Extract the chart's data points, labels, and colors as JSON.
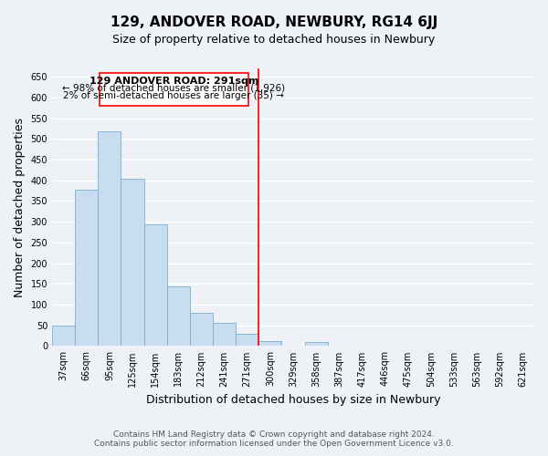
{
  "title": "129, ANDOVER ROAD, NEWBURY, RG14 6JJ",
  "subtitle": "Size of property relative to detached houses in Newbury",
  "xlabel": "Distribution of detached houses by size in Newbury",
  "ylabel": "Number of detached properties",
  "categories": [
    "37sqm",
    "66sqm",
    "95sqm",
    "125sqm",
    "154sqm",
    "183sqm",
    "212sqm",
    "241sqm",
    "271sqm",
    "300sqm",
    "329sqm",
    "358sqm",
    "387sqm",
    "417sqm",
    "446sqm",
    "475sqm",
    "504sqm",
    "533sqm",
    "563sqm",
    "592sqm",
    "621sqm"
  ],
  "values": [
    50,
    378,
    519,
    403,
    293,
    144,
    80,
    55,
    30,
    12,
    0,
    10,
    0,
    0,
    0,
    0,
    0,
    0,
    0,
    0,
    0
  ],
  "bar_color": "#c8ddef",
  "bar_edge_color": "#7ab0d0",
  "vline_x_index": 8.5,
  "vline_color": "red",
  "annotation_title": "129 ANDOVER ROAD: 291sqm",
  "annotation_line1": "← 98% of detached houses are smaller (1,926)",
  "annotation_line2": "2% of semi-detached houses are larger (35) →",
  "annotation_box_edge_color": "red",
  "annotation_box_face_color": "white",
  "ylim": [
    0,
    670
  ],
  "yticks": [
    0,
    50,
    100,
    150,
    200,
    250,
    300,
    350,
    400,
    450,
    500,
    550,
    600,
    650
  ],
  "footer1": "Contains HM Land Registry data © Crown copyright and database right 2024.",
  "footer2": "Contains public sector information licensed under the Open Government Licence v3.0.",
  "bg_color": "#eef2f7",
  "grid_color": "white",
  "title_fontsize": 11,
  "subtitle_fontsize": 9,
  "tick_fontsize": 7,
  "ylabel_fontsize": 9,
  "xlabel_fontsize": 9,
  "footer_fontsize": 6.5,
  "ann_title_fontsize": 8,
  "ann_text_fontsize": 7.5
}
